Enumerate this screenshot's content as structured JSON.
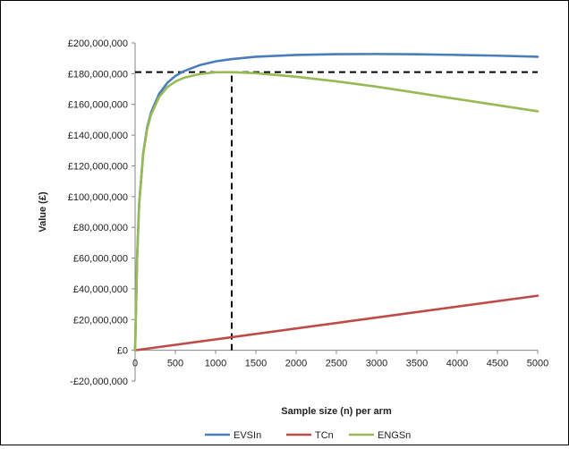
{
  "chart_data": {
    "type": "line",
    "title": "",
    "xlabel": "Sample size (n) per arm",
    "ylabel": "Value (£)",
    "xlim": [
      0,
      5000
    ],
    "ylim": [
      -20000000,
      200000000
    ],
    "x_ticks": [
      0,
      500,
      1000,
      1500,
      2000,
      2500,
      3000,
      3500,
      4000,
      4500,
      5000
    ],
    "x_tick_labels": [
      "0",
      "500",
      "1000",
      "1500",
      "2000",
      "2500",
      "3000",
      "3500",
      "4000",
      "4500",
      "5000"
    ],
    "y_ticks": [
      -20000000,
      0,
      20000000,
      40000000,
      60000000,
      80000000,
      100000000,
      120000000,
      140000000,
      160000000,
      180000000,
      200000000
    ],
    "y_tick_labels": [
      "-£20,000,000",
      "£0",
      "£20,000,000",
      "£40,000,000",
      "£60,000,000",
      "£80,000,000",
      "£100,000,000",
      "£120,000,000",
      "£140,000,000",
      "£160,000,000",
      "£180,000,000",
      "£200,000,000"
    ],
    "grid": false,
    "legend_position": "bottom",
    "series": [
      {
        "name": "EVSIn",
        "color": "#4a7ebb",
        "x": [
          0,
          25,
          50,
          100,
          150,
          200,
          300,
          400,
          500,
          600,
          800,
          1000,
          1200,
          1500,
          2000,
          2500,
          3000,
          3500,
          4000,
          4500,
          5000
        ],
        "y": [
          0,
          60000000,
          95000000,
          128000000,
          145000000,
          155000000,
          167000000,
          174000000,
          178500000,
          181500000,
          185500000,
          188000000,
          189500000,
          191000000,
          192200000,
          192700000,
          192800000,
          192600000,
          192200000,
          191700000,
          191000000
        ]
      },
      {
        "name": "TCn",
        "color": "#be4b48",
        "x": [
          0,
          5000
        ],
        "y": [
          0,
          35500000
        ]
      },
      {
        "name": "ENGSn",
        "color": "#98b954",
        "x": [
          0,
          25,
          50,
          100,
          150,
          200,
          300,
          400,
          500,
          600,
          800,
          1000,
          1200,
          1500,
          2000,
          2500,
          3000,
          3500,
          4000,
          4500,
          5000
        ],
        "y": [
          0,
          59800000,
          94600000,
          127300000,
          144000000,
          153600000,
          164900000,
          171200000,
          174900000,
          177200000,
          179800000,
          180900000,
          181000000,
          180300000,
          178000000,
          175000000,
          171500000,
          167500000,
          163500000,
          159500000,
          155500000
        ]
      }
    ],
    "annotations": [
      {
        "type": "hline-dashed",
        "y": 181000000,
        "x_from": 0,
        "x_to": 5000
      },
      {
        "type": "vline-dashed",
        "x": 1200,
        "y_from": 0,
        "y_to": 181000000
      }
    ]
  }
}
